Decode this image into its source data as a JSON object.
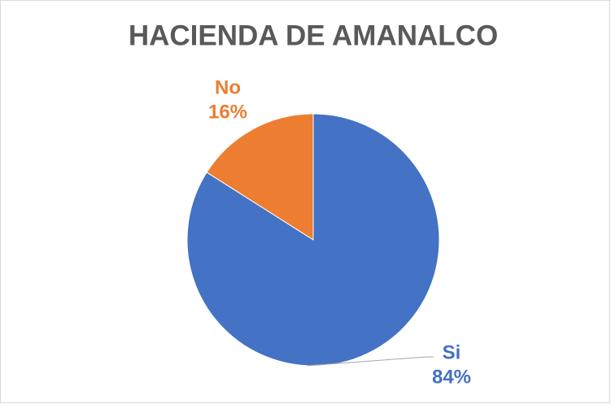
{
  "chart_data": {
    "type": "pie",
    "title": "HACIENDA DE AMANALCO",
    "categories": [
      "Si",
      "No"
    ],
    "values": [
      84,
      16
    ],
    "value_labels": [
      "84%",
      "16%"
    ],
    "colors": [
      "#4472c4",
      "#ed7d31"
    ]
  }
}
